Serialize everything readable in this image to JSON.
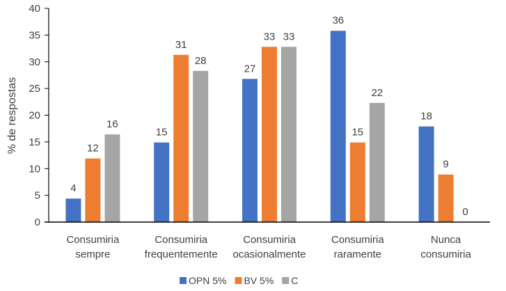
{
  "chart_data": {
    "type": "bar",
    "title": "",
    "xlabel": "",
    "ylabel": "% de respostas",
    "ylim": [
      0,
      40
    ],
    "yticks": [
      0,
      5,
      10,
      15,
      20,
      25,
      30,
      35,
      40
    ],
    "grid": false,
    "legend_position": "bottom",
    "categories": [
      [
        "Consumiria",
        "sempre"
      ],
      [
        "Consumiria",
        "frequentemente"
      ],
      [
        "Consumiria",
        "ocasionalmente"
      ],
      [
        "Consumiria",
        "raramente"
      ],
      [
        "Nunca",
        "consumiria"
      ]
    ],
    "series": [
      {
        "name": "OPN 5%",
        "color": "#4472C4",
        "values": [
          4.4,
          14.9,
          26.8,
          35.8,
          17.9
        ],
        "labels": [
          "4",
          "15",
          "27",
          "36",
          "18"
        ]
      },
      {
        "name": "BV 5%",
        "color": "#ED7D31",
        "values": [
          11.9,
          31.3,
          32.8,
          14.9,
          8.9
        ],
        "labels": [
          "12",
          "31",
          "33",
          "15",
          "9"
        ]
      },
      {
        "name": "C",
        "color": "#A5A5A5",
        "values": [
          16.4,
          28.3,
          32.8,
          22.3,
          0
        ],
        "labels": [
          "16",
          "28",
          "33",
          "22",
          "0"
        ]
      }
    ]
  }
}
